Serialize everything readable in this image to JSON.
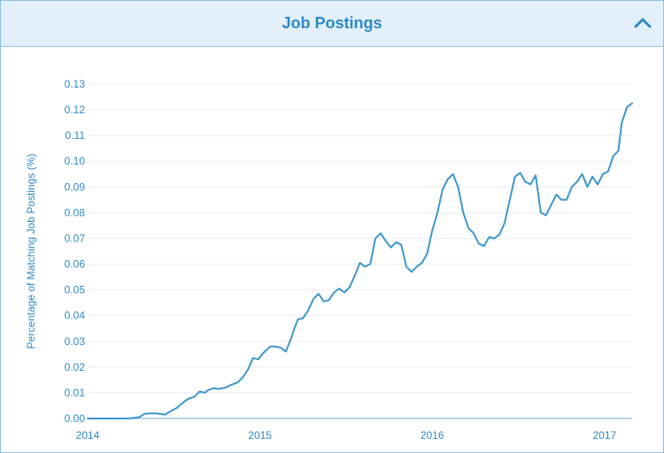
{
  "header": {
    "title": "Job Postings",
    "collapse_icon": "chevron-up-icon"
  },
  "colors": {
    "accent": "#2d8ac7",
    "line": "#3d97cc",
    "grid": "#e8eef3",
    "header_bg": "#e3f0fa",
    "border": "#8fc3e6"
  },
  "chart_data": {
    "type": "line",
    "title": "",
    "xlabel": "",
    "ylabel": "Percentage of Matching Job Postings (%)",
    "xlim": [
      2014.0,
      2017.16
    ],
    "ylim": [
      0,
      0.13
    ],
    "xticks": [
      {
        "value": 2014,
        "label": "2014"
      },
      {
        "value": 2015,
        "label": "2015"
      },
      {
        "value": 2016,
        "label": "2016"
      },
      {
        "value": 2017,
        "label": "2017"
      }
    ],
    "yticks": [
      {
        "value": 0.0,
        "label": "0.00"
      },
      {
        "value": 0.01,
        "label": "0.01"
      },
      {
        "value": 0.02,
        "label": "0.02"
      },
      {
        "value": 0.03,
        "label": "0.03"
      },
      {
        "value": 0.04,
        "label": "0.04"
      },
      {
        "value": 0.05,
        "label": "0.05"
      },
      {
        "value": 0.06,
        "label": "0.06"
      },
      {
        "value": 0.07,
        "label": "0.07"
      },
      {
        "value": 0.08,
        "label": "0.08"
      },
      {
        "value": 0.09,
        "label": "0.09"
      },
      {
        "value": 0.1,
        "label": "0.10"
      },
      {
        "value": 0.11,
        "label": "0.11"
      },
      {
        "value": 0.12,
        "label": "0.12"
      },
      {
        "value": 0.13,
        "label": "0.13"
      }
    ],
    "grid": true,
    "legend": "none",
    "series": [
      {
        "x": [
          2014.0,
          2014.1,
          2014.2,
          2014.25,
          2014.3,
          2014.33,
          2014.36,
          2014.4,
          2014.45,
          2014.48,
          2014.52,
          2014.55,
          2014.58,
          2014.62,
          2014.65,
          2014.68,
          2014.7,
          2014.73,
          2014.76,
          2014.8,
          2014.83,
          2014.87,
          2014.9,
          2014.93,
          2014.96,
          2014.99,
          2015.02,
          2015.06,
          2015.09,
          2015.12,
          2015.15,
          2015.18,
          2015.2,
          2015.22,
          2015.25,
          2015.28,
          2015.31,
          2015.34,
          2015.37,
          2015.4,
          2015.43,
          2015.46,
          2015.49,
          2015.52,
          2015.55,
          2015.58,
          2015.61,
          2015.64,
          2015.67,
          2015.7,
          2015.73,
          2015.76,
          2015.79,
          2015.82,
          2015.85,
          2015.88,
          2015.91,
          2015.94,
          2015.97,
          2016.0,
          2016.03,
          2016.06,
          2016.09,
          2016.12,
          2016.15,
          2016.18,
          2016.21,
          2016.24,
          2016.27,
          2016.3,
          2016.33,
          2016.36,
          2016.39,
          2016.42,
          2016.45,
          2016.48,
          2016.51,
          2016.54,
          2016.57,
          2016.6,
          2016.63,
          2016.66,
          2016.69,
          2016.72,
          2016.75,
          2016.78,
          2016.81,
          2016.84,
          2016.87,
          2016.9,
          2016.93,
          2016.96,
          2016.99,
          2017.02,
          2017.05,
          2017.08,
          2017.1,
          2017.13,
          2017.16
        ],
        "y": [
          0.0,
          0.0,
          0.0,
          0.0001,
          0.0005,
          0.0018,
          0.002,
          0.002,
          0.0015,
          0.0028,
          0.0042,
          0.006,
          0.0075,
          0.0085,
          0.0105,
          0.01,
          0.011,
          0.0118,
          0.0115,
          0.012,
          0.013,
          0.014,
          0.016,
          0.019,
          0.0235,
          0.023,
          0.0255,
          0.028,
          0.028,
          0.0275,
          0.026,
          0.031,
          0.035,
          0.0385,
          0.039,
          0.042,
          0.0465,
          0.0485,
          0.0455,
          0.046,
          0.049,
          0.0505,
          0.049,
          0.051,
          0.0555,
          0.0605,
          0.059,
          0.06,
          0.07,
          0.072,
          0.069,
          0.0665,
          0.0685,
          0.0675,
          0.059,
          0.057,
          0.059,
          0.0605,
          0.064,
          0.073,
          0.08,
          0.089,
          0.093,
          0.095,
          0.09,
          0.08,
          0.074,
          0.072,
          0.068,
          0.067,
          0.0705,
          0.07,
          0.0715,
          0.076,
          0.085,
          0.094,
          0.0955,
          0.092,
          0.091,
          0.0945,
          0.08,
          0.079,
          0.083,
          0.087,
          0.085,
          0.085,
          0.09,
          0.092,
          0.095,
          0.09,
          0.094,
          0.091,
          0.095,
          0.096,
          0.102,
          0.104,
          0.115,
          0.121,
          0.1225
        ]
      }
    ]
  }
}
